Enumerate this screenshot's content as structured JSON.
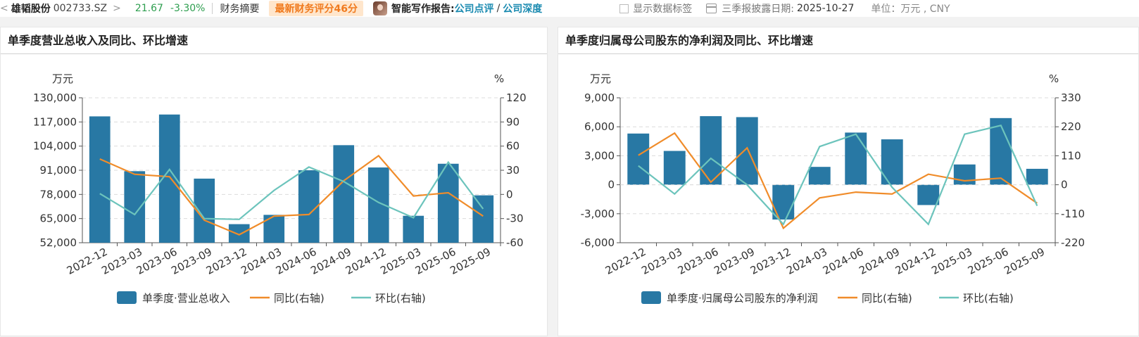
{
  "header": {
    "back_arrow": "<",
    "stock_name": "雄韬股份",
    "stock_code": "002733.SZ",
    "more_arrow": ">",
    "price": "21.67",
    "change_pct": "-3.30%",
    "menu_financial_summary": "财务摘要",
    "score_badge": "最新财务评分46分",
    "ai_label": "智能写作报告:",
    "ai_link_1": "公司点评",
    "ai_slash": "/",
    "ai_link_2": "公司深度",
    "show_labels": "显示数据标签",
    "date_label": "三季报披露日期:",
    "date_value": "2025-10-27",
    "unit_label": "单位：万元 , CNY",
    "colors": {
      "down": "#2e9e4f",
      "score_bg": "#ffe6cc",
      "score_fg": "#f07a1e",
      "link": "#1a8ab0"
    }
  },
  "chart_data": [
    {
      "type": "bar",
      "title": "单季度营业总收入及同比、环比增速",
      "ylabel": "万元",
      "y2label": "%",
      "categories": [
        "2022-12",
        "2023-03",
        "2023-06",
        "2023-09",
        "2023-12",
        "2024-03",
        "2024-06",
        "2024-09",
        "2024-12",
        "2025-03",
        "2025-06",
        "2025-09"
      ],
      "ylim": [
        52000,
        130000
      ],
      "yticks": [
        52000,
        65000,
        78000,
        91000,
        104000,
        117000,
        130000
      ],
      "ytick_labels": [
        "52,000",
        "65,000",
        "78,000",
        "91,000",
        "104,000",
        "117,000",
        "130,000"
      ],
      "y2lim": [
        -60,
        120
      ],
      "y2ticks": [
        -60,
        -30,
        0,
        30,
        60,
        90,
        120
      ],
      "y2tick_labels": [
        "-60",
        "-30",
        "0",
        "30",
        "60",
        "90",
        "120"
      ],
      "bars": {
        "name": "单季度·营业总收入",
        "color": "#2878a4",
        "values": [
          120000,
          90500,
          121000,
          86500,
          62000,
          67000,
          91000,
          104500,
          92500,
          66500,
          94500,
          77500
        ]
      },
      "series": [
        {
          "name": "同比(右轴)",
          "color": "#f08c2a",
          "axis": "right",
          "values": [
            44,
            25,
            22,
            -32,
            -50,
            -27,
            -25,
            17,
            48,
            -2,
            2,
            -27
          ]
        },
        {
          "name": "环比(右轴)",
          "color": "#6cc4bc",
          "axis": "right",
          "values": [
            1,
            -25,
            31,
            -30,
            -31,
            5,
            34,
            16,
            -10,
            -29,
            40,
            -18
          ]
        }
      ],
      "legend": "bottom",
      "grid": true
    },
    {
      "type": "bar",
      "title": "单季度归属母公司股东的净利润及同比、环比增速",
      "ylabel": "万元",
      "y2label": "%",
      "categories": [
        "2022-12",
        "2023-03",
        "2023-06",
        "2023-09",
        "2023-12",
        "2024-03",
        "2024-06",
        "2024-09",
        "2024-12",
        "2025-03",
        "2025-06",
        "2025-09"
      ],
      "ylim": [
        -6000,
        9000
      ],
      "yticks": [
        -6000,
        -3000,
        0,
        3000,
        6000,
        9000
      ],
      "ytick_labels": [
        "-6,000",
        "-3,000",
        "0",
        "3,000",
        "6,000",
        "9,000"
      ],
      "y2lim": [
        -220,
        330
      ],
      "y2ticks": [
        -220,
        -110,
        0,
        110,
        220,
        330
      ],
      "y2tick_labels": [
        "-220",
        "-110",
        "0",
        "110",
        "220",
        "330"
      ],
      "bars": {
        "name": "单季度·归属母公司股东的净利润",
        "color": "#2878a4",
        "values": [
          5300,
          3500,
          7100,
          7000,
          -3600,
          1850,
          5400,
          4700,
          -2100,
          2100,
          6900,
          1650
        ]
      },
      "series": [
        {
          "name": "同比(右轴)",
          "color": "#f08c2a",
          "axis": "right",
          "values": [
            112,
            196,
            10,
            140,
            -165,
            -50,
            -28,
            -35,
            40,
            15,
            25,
            -70
          ]
        },
        {
          "name": "环比(右轴)",
          "color": "#6cc4bc",
          "axis": "right",
          "values": [
            72,
            -35,
            100,
            0,
            -150,
            145,
            192,
            -10,
            -150,
            192,
            225,
            -80
          ]
        }
      ],
      "legend": "bottom",
      "grid": true
    }
  ]
}
